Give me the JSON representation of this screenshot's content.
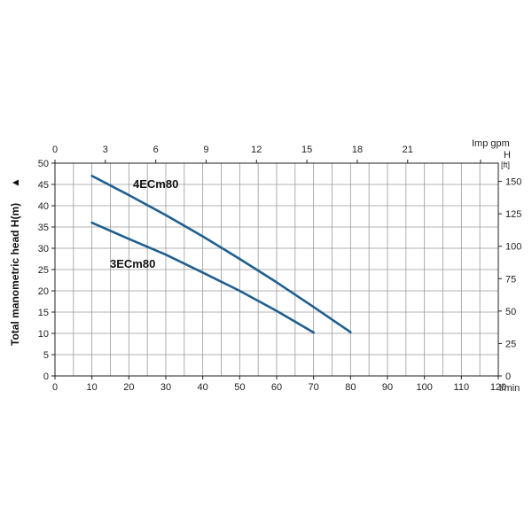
{
  "chart_data": {
    "type": "line",
    "title": "",
    "xlabel": "l/min",
    "x_top_label": "Imp gpm",
    "ylabel": "Total manometric head H(m)",
    "ylabel_arrow": "▲",
    "y_right_label": "H",
    "y_right_unit": "[ft]",
    "xlim": [
      0,
      120
    ],
    "ylim": [
      0,
      50
    ],
    "x_ticks": [
      "0",
      "10",
      "20",
      "30",
      "40",
      "50",
      "60",
      "70",
      "80",
      "90",
      "100",
      "110",
      "120"
    ],
    "x_top_ticks": [
      "0",
      "3",
      "6",
      "9",
      "12",
      "15",
      "18",
      "21"
    ],
    "x_top_tick_values": [
      0,
      3,
      6,
      9,
      12,
      15,
      18,
      21
    ],
    "y_ticks": [
      "0",
      "5",
      "10",
      "15",
      "20",
      "25",
      "30",
      "35",
      "40",
      "45",
      "50"
    ],
    "y_right_ticks": [
      "0",
      "25",
      "50",
      "75",
      "100",
      "125",
      "150"
    ],
    "y_right_tick_values": [
      0,
      25,
      50,
      75,
      100,
      125,
      150
    ],
    "grid": true,
    "series_color": "#1f5f8f",
    "series": [
      {
        "name": "4ECm80",
        "x": [
          10,
          20,
          30,
          40,
          50,
          60,
          70,
          80
        ],
        "y": [
          47,
          42.5,
          37.8,
          32.8,
          27.5,
          22,
          16.2,
          10.3
        ]
      },
      {
        "name": "3ECm80",
        "x": [
          10,
          20,
          30,
          40,
          50,
          60,
          70
        ],
        "y": [
          36,
          32.2,
          28.5,
          24.3,
          20,
          15.3,
          10.2
        ]
      }
    ]
  }
}
